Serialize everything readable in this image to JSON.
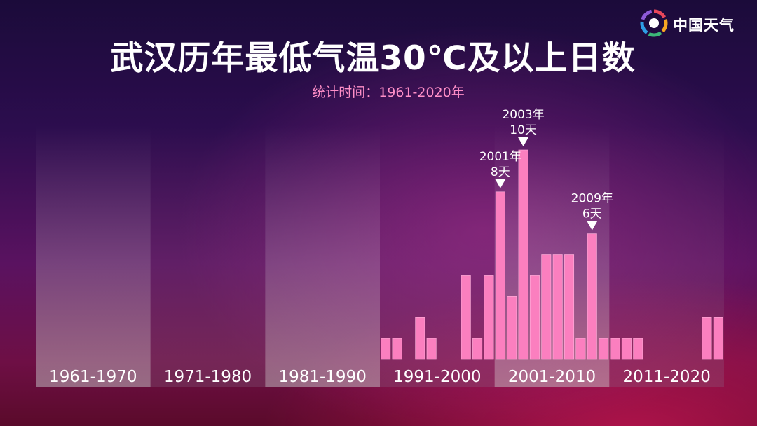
{
  "brand": {
    "logo_text": "中国天气",
    "logo_icon": "china-weather-logo-icon"
  },
  "colors": {
    "bar": "#fb7fbf",
    "bar_stroke": "#ffb2dc",
    "band_light": "#c8c8cc",
    "band_dark": "#8a6a8a",
    "annotation": "#ffffff"
  },
  "chart_data": {
    "type": "bar",
    "title": "武汉历年最低气温30℃及以上日数",
    "subtitle": "统计时间：1961-2020年",
    "xlabel": "",
    "ylabel": "",
    "ylim": [
      0,
      11
    ],
    "x_start": 1961,
    "x_end": 2020,
    "decades": [
      "1961-1970",
      "1971-1980",
      "1981-1990",
      "1991-2000",
      "2001-2010",
      "2011-2020"
    ],
    "years": [
      1991,
      1992,
      1994,
      1995,
      1998,
      1999,
      2000,
      2001,
      2002,
      2003,
      2004,
      2005,
      2006,
      2007,
      2008,
      2009,
      2010,
      2011,
      2012,
      2013,
      2019,
      2020
    ],
    "values": [
      1,
      1,
      2,
      1,
      4,
      1,
      4,
      8,
      3,
      10,
      4,
      5,
      5,
      5,
      1,
      6,
      1,
      1,
      1,
      1,
      2,
      2
    ],
    "annotations": [
      {
        "year": 2001,
        "year_label": "2001年",
        "value_label": "8天"
      },
      {
        "year": 2003,
        "year_label": "2003年",
        "value_label": "10天"
      },
      {
        "year": 2009,
        "year_label": "2009年",
        "value_label": "6天"
      }
    ]
  }
}
